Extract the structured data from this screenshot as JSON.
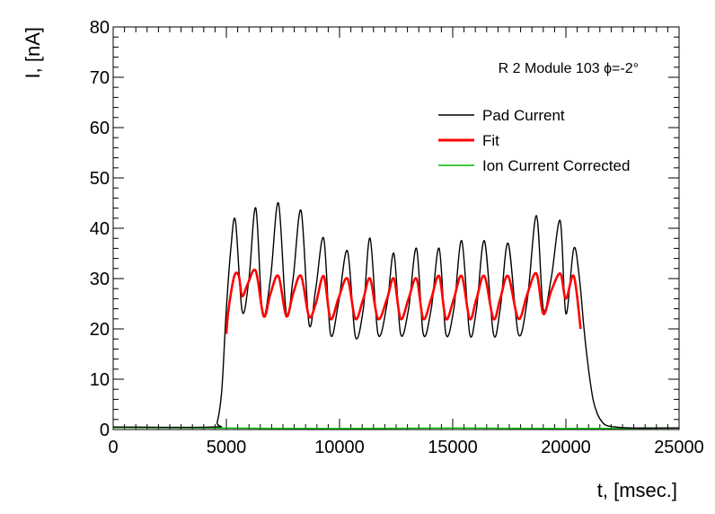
{
  "chart_data": {
    "type": "line",
    "title": "",
    "annotation": "R 2 Module 103 ϕ=-2°",
    "xlabel": "t, [msec.]",
    "ylabel": "I, [nA]",
    "xlim": [
      0,
      25000
    ],
    "ylim": [
      0,
      80
    ],
    "xticks": [
      0,
      5000,
      10000,
      15000,
      20000,
      25000
    ],
    "yticks": [
      0,
      10,
      20,
      30,
      40,
      50,
      60,
      70,
      80
    ],
    "xtick_labels": [
      "0",
      "5000",
      "10000",
      "15000",
      "20000",
      "25000"
    ],
    "ytick_labels": [
      "0",
      "10",
      "20",
      "30",
      "40",
      "50",
      "60",
      "70",
      "80"
    ],
    "grid": false,
    "legend_position": "top-right",
    "legend": [
      "Pad Current",
      "Fit",
      "Ion Current Corrected"
    ],
    "series": [
      {
        "name": "Pad Current",
        "color": "#000000",
        "x": [
          0,
          4400,
          4600,
          4800,
          5000,
          5200,
          5400,
          5700,
          6000,
          6300,
          6600,
          6950,
          7300,
          7650,
          7950,
          8300,
          8650,
          8950,
          9300,
          9600,
          9950,
          10350,
          10700,
          11050,
          11350,
          11700,
          12100,
          12400,
          12700,
          13050,
          13400,
          13700,
          14050,
          14400,
          14700,
          15050,
          15400,
          15750,
          16050,
          16400,
          16800,
          17100,
          17450,
          17900,
          18300,
          18700,
          19000,
          19350,
          19750,
          20000,
          20350,
          20600,
          20800,
          21000,
          21200,
          21400,
          21600,
          21800,
          22200,
          23000,
          25000
        ],
        "y": [
          0.5,
          0.5,
          1.5,
          8,
          24,
          36,
          41.5,
          23.5,
          30,
          44,
          23,
          30,
          45,
          23,
          30,
          43.5,
          21,
          28,
          38,
          19,
          25,
          35.5,
          18.5,
          24,
          38,
          19,
          25,
          35,
          19,
          24,
          36,
          19,
          24,
          36,
          19,
          24,
          37.5,
          19,
          24,
          37.5,
          19,
          24,
          37,
          19,
          26,
          42.5,
          24,
          30,
          41.5,
          23,
          36,
          30,
          20,
          12,
          6,
          3,
          1.5,
          0.8,
          0.5,
          0.3,
          0.3
        ]
      },
      {
        "name": "Fit",
        "color": "#ff0000",
        "x": [
          5000,
          5100,
          5350,
          5550,
          5700,
          5950,
          6300,
          6650,
          6950,
          7300,
          7650,
          7950,
          8300,
          8650,
          8950,
          9300,
          9600,
          9950,
          10350,
          10700,
          11050,
          11350,
          11700,
          12100,
          12400,
          12700,
          13050,
          13400,
          13700,
          14050,
          14400,
          14700,
          15050,
          15400,
          15750,
          16050,
          16400,
          16800,
          17100,
          17450,
          17900,
          18300,
          18700,
          19000,
          19350,
          19750,
          20000,
          20350,
          20650
        ],
        "y": [
          19,
          24,
          30.5,
          30.5,
          26.5,
          29,
          31.5,
          22.5,
          27,
          30.5,
          22.5,
          27,
          30.5,
          22.5,
          25,
          30.5,
          22,
          26,
          30,
          22,
          26,
          30,
          22,
          26,
          30,
          22,
          26,
          30,
          22,
          26,
          30.5,
          22,
          26,
          30.5,
          22,
          26,
          30.5,
          22,
          26,
          30.5,
          22,
          27,
          31,
          23,
          27.5,
          31,
          26,
          30.5,
          20
        ]
      },
      {
        "name": "Ion Current Corrected",
        "color": "#00bb00",
        "x": [
          0,
          5000,
          10000,
          15000,
          20000,
          25000
        ],
        "y": [
          0.4,
          0.3,
          0.2,
          0.3,
          0.2,
          0.3
        ]
      }
    ]
  }
}
